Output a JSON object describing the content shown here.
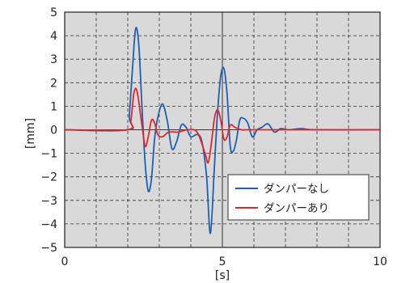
{
  "chart_data": {
    "type": "line",
    "title": "",
    "xlabel": "[s]",
    "ylabel": "[mm]",
    "xlim": [
      0,
      10
    ],
    "ylim": [
      -5,
      5
    ],
    "x_ticks": [
      "0",
      "5",
      "10"
    ],
    "y_ticks": [
      "5",
      "4",
      "3",
      "2",
      "1",
      "0",
      "−1",
      "−2",
      "−3",
      "−4",
      "−5"
    ],
    "grid": true,
    "legend_position": "lower-right",
    "plot_background": "#d9d9d9",
    "series": [
      {
        "name": "ダンパーなし",
        "color": "#1f5fb0",
        "x": [
          0,
          2.0,
          2.05,
          2.15,
          2.25,
          2.35,
          2.45,
          2.55,
          2.65,
          2.75,
          2.85,
          2.95,
          3.1,
          3.25,
          3.4,
          3.55,
          3.7,
          3.85,
          4.0,
          4.2,
          4.35,
          4.5,
          4.62,
          4.75,
          4.85,
          4.95,
          5.05,
          5.15,
          5.25,
          5.35,
          5.45,
          5.55,
          5.65,
          5.8,
          5.95,
          6.1,
          6.25,
          6.45,
          6.65,
          6.85,
          7.1,
          7.5,
          8.0,
          10
        ],
        "y": [
          0,
          0,
          0.6,
          2.6,
          4.3,
          3.6,
          1.0,
          -1.4,
          -2.6,
          -2.1,
          -0.4,
          0.5,
          1.1,
          0.4,
          -0.8,
          -0.5,
          0.2,
          0.1,
          -0.3,
          -0.2,
          -0.5,
          -2.0,
          -4.4,
          -1.5,
          0.8,
          2.3,
          2.6,
          1.5,
          -0.7,
          -0.9,
          -0.4,
          0.4,
          0.5,
          0.3,
          -0.3,
          0.0,
          0.1,
          0.25,
          -0.1,
          0.05,
          0.0,
          0.05,
          0.0,
          0.0
        ]
      },
      {
        "name": "ダンパーあり",
        "color": "#e0262c",
        "x": [
          0,
          2.0,
          2.1,
          2.2,
          2.3,
          2.45,
          2.55,
          2.65,
          2.75,
          2.85,
          2.95,
          3.1,
          3.3,
          3.6,
          3.9,
          4.2,
          4.45,
          4.55,
          4.65,
          4.75,
          4.85,
          4.95,
          5.05,
          5.15,
          5.25,
          5.4,
          5.6,
          5.8,
          6.1,
          6.5,
          7.0,
          10
        ],
        "y": [
          0,
          0,
          0.4,
          1.6,
          1.6,
          0.2,
          -0.7,
          -0.3,
          0.4,
          0.3,
          -0.2,
          -0.3,
          -0.1,
          -0.1,
          0.0,
          -0.1,
          -1.0,
          -1.4,
          -0.6,
          0.5,
          0.85,
          0.4,
          -0.4,
          -0.3,
          0.2,
          0.1,
          0.0,
          0.0,
          0.0,
          0.0,
          0.0,
          0.0
        ]
      }
    ]
  }
}
